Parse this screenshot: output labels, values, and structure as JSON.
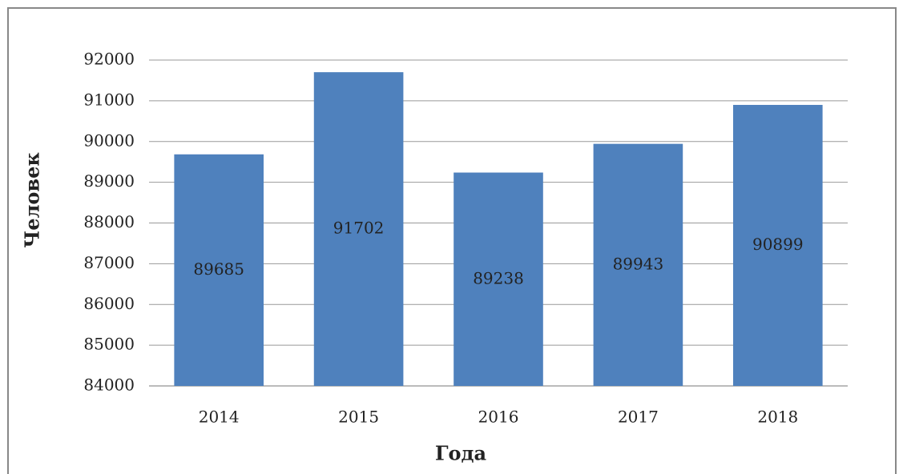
{
  "chart_data": {
    "type": "bar",
    "categories": [
      "2014",
      "2015",
      "2016",
      "2017",
      "2018"
    ],
    "values": [
      89685,
      91702,
      89238,
      89943,
      90899
    ],
    "color": "#4f81bd",
    "x_label": "Года",
    "y_label": "Человек",
    "ylim": [
      84000,
      92000
    ],
    "yticks": [
      84000,
      85000,
      86000,
      87000,
      88000,
      89000,
      90000,
      91000,
      92000
    ],
    "grid": true
  }
}
